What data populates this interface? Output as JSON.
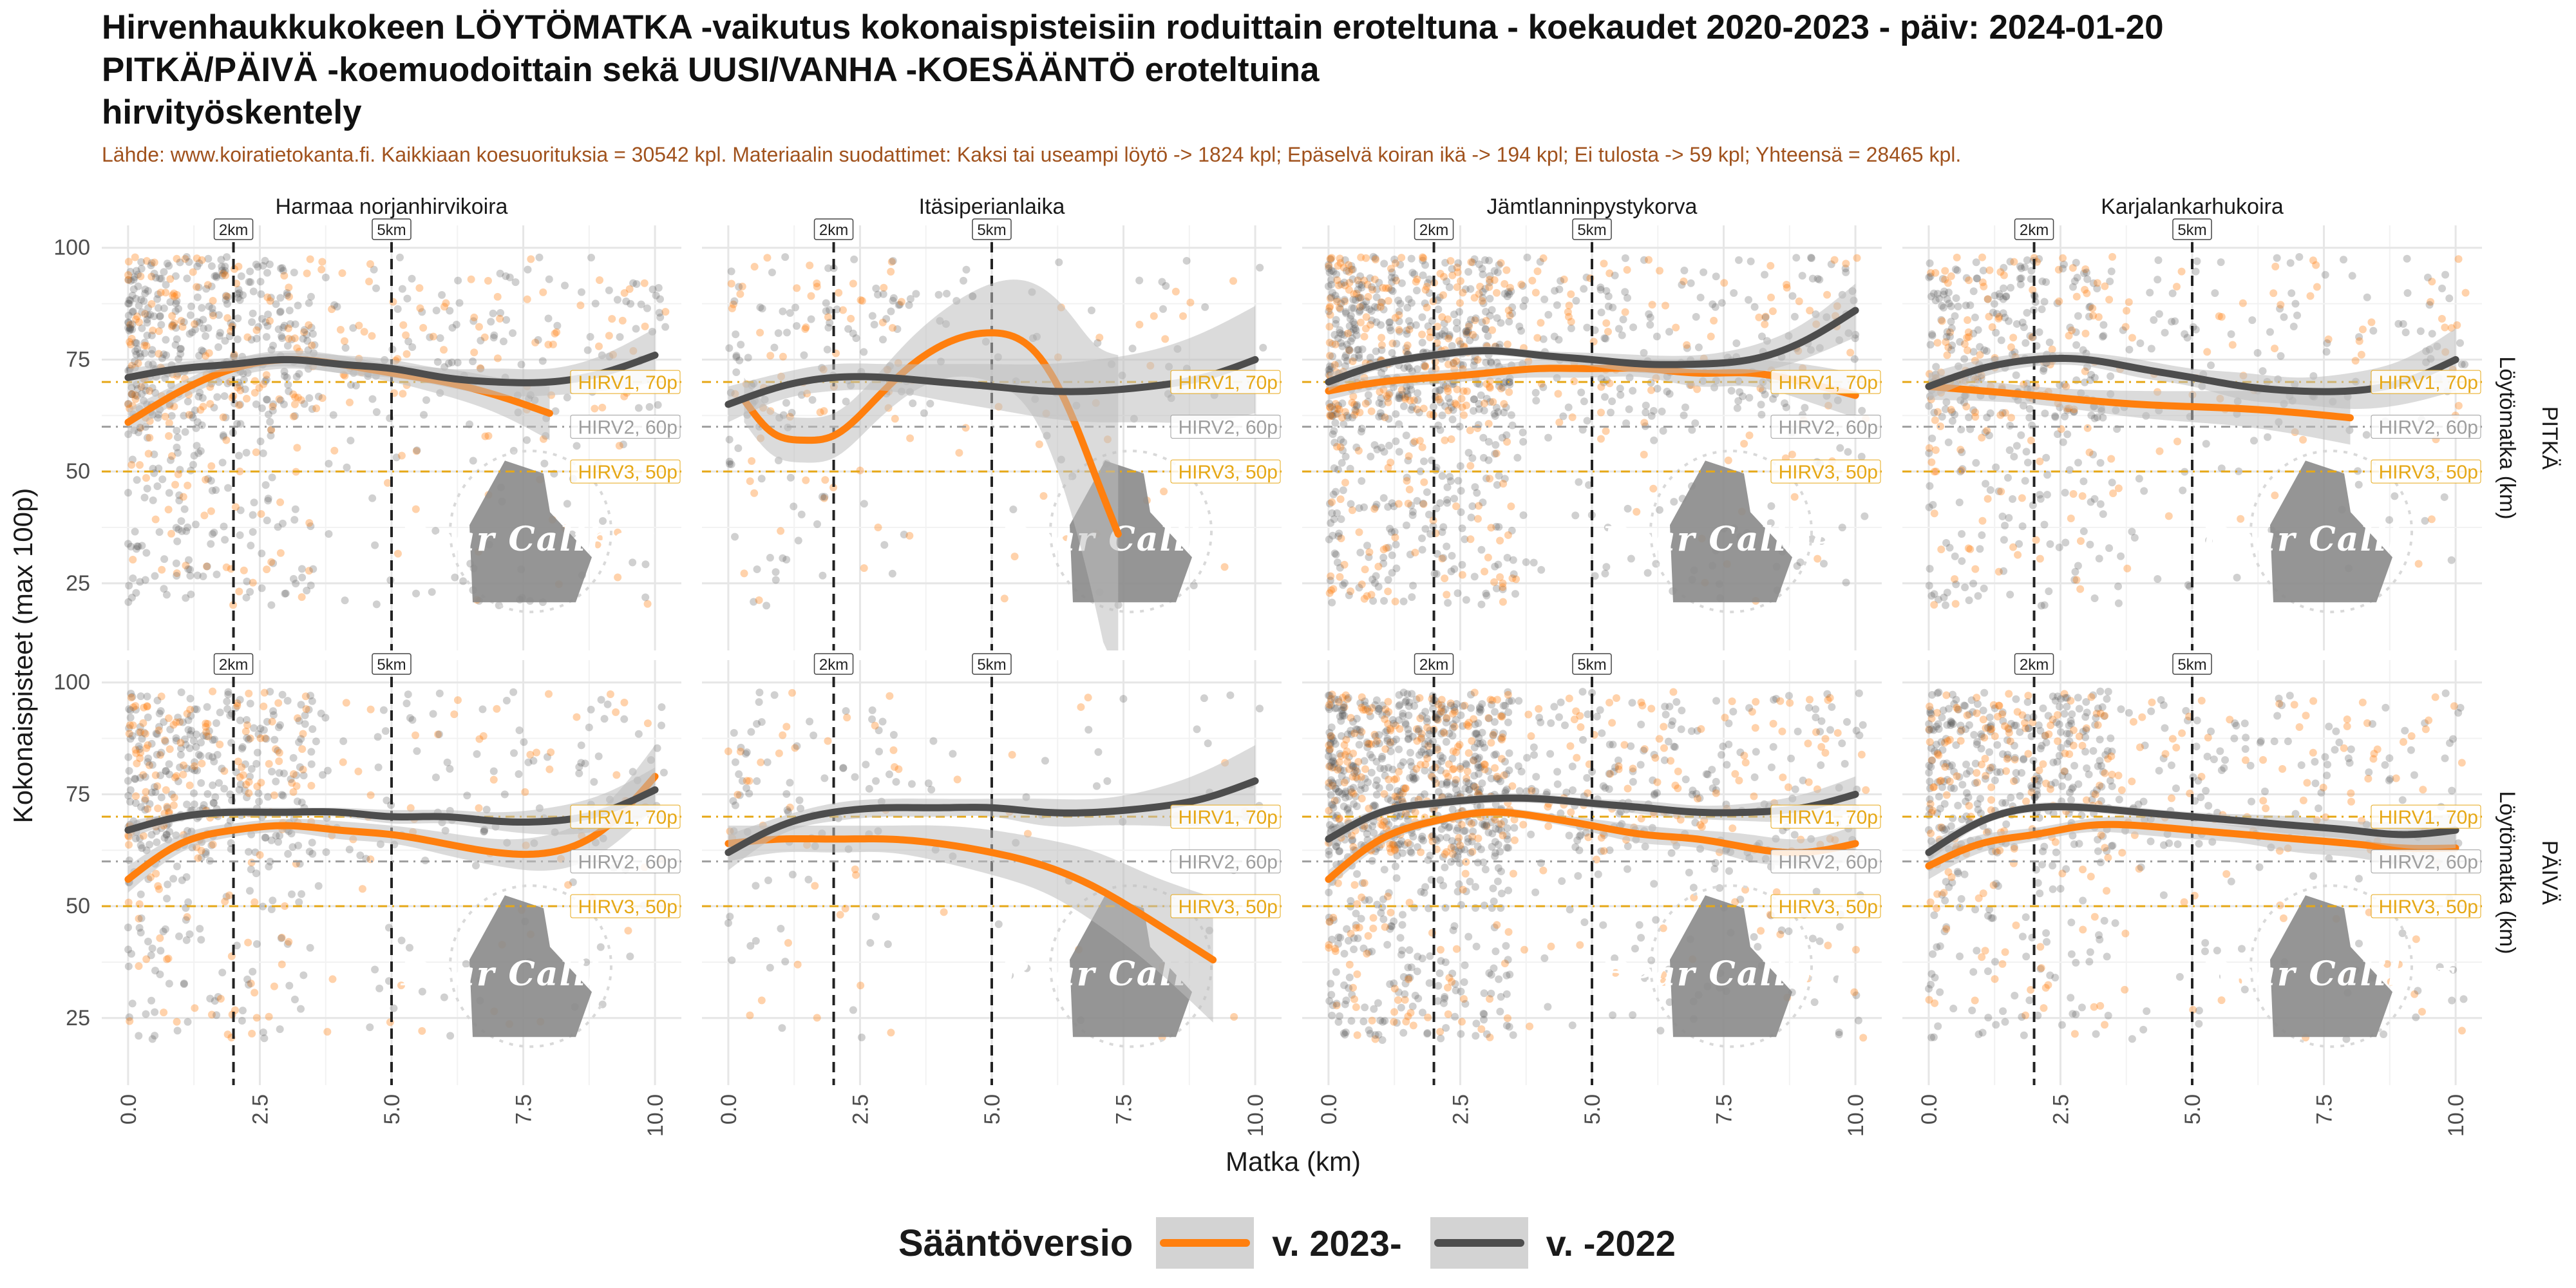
{
  "header": {
    "title_lines": [
      "Hirvenhaukkukokeen LÖYTÖMATKA -vaikutus kokonaispisteisiin roduittain eroteltuna - koekaudet 2020-2023 - päiv: 2024-01-20",
      "PITKÄ/PÄIVÄ -koemuodoittain sekä UUSI/VANHA -KOESÄÄNTÖ eroteltuina",
      "hirvityöskentely"
    ],
    "source": "Lähde: www.koiratietokanta.fi. Kaikkiaan koesuorituksia = 30542 kpl. Materiaalin suodattimet: Kaksi tai useampi löytö -> 1824 kpl; Epäselvä koiran ikä -> 194 kpl; Ei tulosta -> 59 kpl; Yhteensä = 28465 kpl."
  },
  "colors": {
    "new_rule": "#ff7f0e",
    "old_rule": "#4d4d4d",
    "ribbon": "#bdbdbd",
    "threshold_high": "#e6a817",
    "threshold_mid": "#9e9e9e"
  },
  "chart_data": {
    "type": "scatter",
    "xlabel": "Matka (km)",
    "ylabel": "Kokonaispisteet (max 100p)",
    "xlim": [
      -0.5,
      10.5
    ],
    "ylim": [
      10,
      105
    ],
    "x_ticks": [
      "0.0",
      "2.5",
      "5.0",
      "7.5",
      "10.0"
    ],
    "x_tick_values": [
      0,
      2.5,
      5,
      7.5,
      10
    ],
    "y_ticks": [
      "25",
      "50",
      "75",
      "100"
    ],
    "y_tick_values": [
      25,
      50,
      75,
      100
    ],
    "columns": [
      "Harmaa norjanhirvikoira",
      "Itäsiperianlaika",
      "Jämtlanninpystykorva",
      "Karjalankarhukoira"
    ],
    "rows": [
      "PITKÄ",
      "PÄIVÄ"
    ],
    "row_strip_sub": "Löytömatka (km)",
    "vlines": [
      {
        "x": 2,
        "label": "2km"
      },
      {
        "x": 5,
        "label": "5km"
      }
    ],
    "hlines": [
      {
        "y": 70,
        "label": "HIRV1, 70p",
        "style": "high"
      },
      {
        "y": 60,
        "label": "HIRV2, 60p",
        "style": "mid"
      },
      {
        "y": 50,
        "label": "HIRV3, 50p",
        "style": "high"
      }
    ],
    "watermark": "Bear Caliber",
    "legend": {
      "title": "Sääntöversio",
      "entries": [
        "v. 2023-",
        "v. -2022"
      ]
    },
    "series": [
      {
        "name": "v. 2023-",
        "panels": [
          {
            "row": 0,
            "col": 0,
            "x": [
              0,
              1,
              2,
              3,
              4,
              5,
              6,
              7,
              8
            ],
            "y": [
              61,
              68,
              73,
              75,
              74,
              72,
              70,
              67,
              63
            ],
            "band": [
              3,
              2,
              2,
              2,
              2,
              2,
              3,
              4,
              6
            ]
          },
          {
            "row": 0,
            "col": 1,
            "x": [
              0.3,
              0.8,
              1.4,
              2.0,
              2.7,
              3.4,
              4.2,
              5.0,
              5.8,
              6.5,
              7.0,
              7.4
            ],
            "y": [
              66,
              59,
              57,
              58,
              65,
              73,
              79,
              81,
              77,
              63,
              48,
              36
            ],
            "band": [
              5,
              5,
              5,
              5,
              5,
              6,
              8,
              11,
              15,
              22,
              30,
              40
            ]
          },
          {
            "row": 0,
            "col": 2,
            "x": [
              0,
              1,
              2,
              3,
              4,
              5,
              6,
              7,
              8,
              9,
              10
            ],
            "y": [
              68,
              70,
              71,
              72,
              73,
              73,
              73,
              72,
              72,
              70,
              67
            ],
            "band": [
              2,
              1.5,
              1.5,
              1.5,
              2,
              2,
              2,
              3,
              3,
              4,
              5
            ]
          },
          {
            "row": 0,
            "col": 3,
            "x": [
              0,
              2,
              4,
              6,
              8
            ],
            "y": [
              69,
              67,
              65,
              64,
              62
            ],
            "band": [
              3,
              2,
              3,
              4,
              6
            ]
          },
          {
            "row": 1,
            "col": 0,
            "x": [
              0,
              1,
              2,
              3,
              4,
              5,
              6,
              7,
              8,
              9,
              10
            ],
            "y": [
              56,
              64,
              67,
              68,
              67,
              66,
              64,
              62,
              62,
              67,
              79
            ],
            "band": [
              3,
              2,
              1.5,
              1.5,
              2,
              2,
              2.5,
              3,
              4,
              5,
              7
            ]
          },
          {
            "row": 1,
            "col": 1,
            "x": [
              0,
              1,
              2,
              3,
              4,
              5,
              6,
              7,
              8,
              9.2
            ],
            "y": [
              64,
              65,
              65,
              65,
              64,
              62,
              59,
              54,
              47,
              38
            ],
            "band": [
              4,
              3,
              3,
              3,
              4,
              5,
              6,
              8,
              10,
              14
            ]
          },
          {
            "row": 1,
            "col": 2,
            "x": [
              0,
              1,
              2,
              3,
              4,
              5,
              6,
              7,
              8,
              9,
              10
            ],
            "y": [
              56,
              65,
              69,
              71,
              70,
              68,
              66,
              65,
              63,
              62,
              64
            ],
            "band": [
              2,
              1.5,
              1,
              1,
              1,
              1.5,
              2,
              2,
              3,
              3,
              4
            ]
          },
          {
            "row": 1,
            "col": 3,
            "x": [
              0,
              1,
              2,
              3,
              4,
              5,
              6,
              7,
              8,
              9,
              10
            ],
            "y": [
              59,
              64,
              66,
              68,
              68,
              67,
              66,
              65,
              64,
              63,
              63
            ],
            "band": [
              3,
              2,
              1.5,
              1.5,
              2,
              2,
              2,
              3,
              3,
              4,
              5
            ]
          }
        ]
      },
      {
        "name": "v. -2022",
        "panels": [
          {
            "row": 0,
            "col": 0,
            "x": [
              0,
              1,
              2,
              3,
              4,
              5,
              6,
              7,
              8,
              9,
              10
            ],
            "y": [
              71,
              73,
              74,
              75,
              74,
              73,
              71,
              70,
              70,
              72,
              76
            ],
            "band": [
              2,
              1.5,
              1.5,
              1.5,
              2,
              2,
              2,
              3,
              3,
              4,
              6
            ]
          },
          {
            "row": 0,
            "col": 1,
            "x": [
              0,
              1,
              2,
              3,
              4,
              5,
              6,
              7,
              8,
              9,
              10
            ],
            "y": [
              65,
              69,
              71,
              71,
              70,
              69,
              68,
              68,
              69,
              71,
              75
            ],
            "band": [
              4,
              3,
              3,
              3,
              4,
              5,
              6,
              7,
              8,
              10,
              12
            ]
          },
          {
            "row": 0,
            "col": 2,
            "x": [
              0,
              1,
              2,
              3,
              4,
              5,
              6,
              7,
              8,
              9,
              10
            ],
            "y": [
              70,
              74,
              76,
              77,
              76,
              75,
              74,
              74,
              75,
              79,
              86
            ],
            "band": [
              2,
              1,
              1,
              1,
              1,
              1.5,
              2,
              2,
              3,
              4,
              6
            ]
          },
          {
            "row": 0,
            "col": 3,
            "x": [
              0,
              1,
              2,
              3,
              4,
              5,
              6,
              7,
              8,
              9,
              10
            ],
            "y": [
              69,
              73,
              75,
              75,
              73,
              71,
              69,
              68,
              68,
              70,
              75
            ],
            "band": [
              3,
              2,
              1.5,
              1.5,
              2,
              2,
              3,
              3,
              4,
              5,
              7
            ]
          },
          {
            "row": 1,
            "col": 0,
            "x": [
              0,
              1,
              2,
              3,
              4,
              5,
              6,
              7,
              8,
              9,
              10
            ],
            "y": [
              67,
              70,
              71,
              71,
              71,
              70,
              70,
              69,
              69,
              71,
              76
            ],
            "band": [
              2,
              1,
              1,
              1,
              1,
              1.5,
              1.5,
              2,
              3,
              4,
              5
            ]
          },
          {
            "row": 1,
            "col": 1,
            "x": [
              0,
              1,
              2,
              3,
              4,
              5,
              6,
              7,
              8,
              9,
              10
            ],
            "y": [
              62,
              68,
              71,
              72,
              72,
              72,
              71,
              71,
              72,
              74,
              78
            ],
            "band": [
              4,
              2,
              2,
              2,
              2,
              2,
              3,
              3,
              4,
              6,
              8
            ]
          },
          {
            "row": 1,
            "col": 2,
            "x": [
              0,
              1,
              2,
              3,
              4,
              5,
              6,
              7,
              8,
              9,
              10
            ],
            "y": [
              65,
              71,
              73,
              74,
              74,
              73,
              72,
              71,
              71,
              72,
              75
            ],
            "band": [
              2,
              1,
              1,
              1,
              1,
              1,
              1.5,
              1.5,
              2,
              3,
              4
            ]
          },
          {
            "row": 1,
            "col": 3,
            "x": [
              0,
              1,
              2,
              3,
              4,
              5,
              6,
              7,
              8,
              9,
              10
            ],
            "y": [
              62,
              69,
              72,
              72,
              71,
              70,
              69,
              68,
              67,
              66,
              67
            ],
            "band": [
              2,
              1,
              1,
              1,
              1,
              1,
              1.5,
              2,
              2,
              3,
              4
            ]
          }
        ]
      }
    ]
  }
}
